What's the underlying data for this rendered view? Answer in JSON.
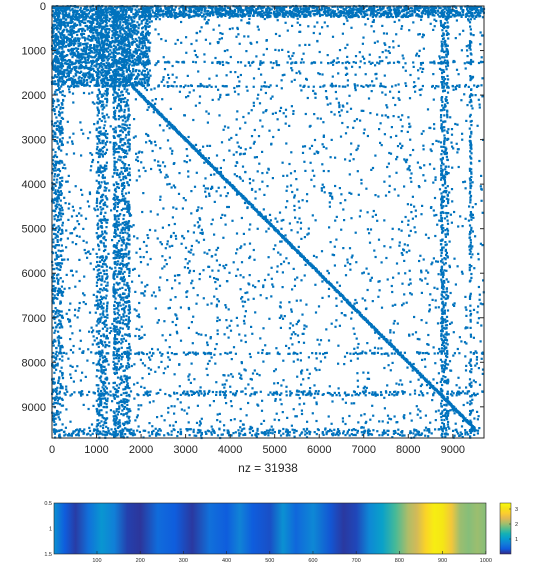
{
  "chart_data": [
    {
      "type": "scatter",
      "subtype": "sparsity-pattern",
      "title": "",
      "xlabel": "nz = 31938",
      "ylabel": "",
      "matrix_size": 9700,
      "nnz": 31938,
      "xlim": [
        0,
        9700
      ],
      "ylim": [
        9700,
        0
      ],
      "x_ticks": [
        0,
        1000,
        2000,
        3000,
        4000,
        5000,
        6000,
        7000,
        8000,
        9000
      ],
      "x_tick_labels": [
        "0",
        "1000",
        "2000",
        "3000",
        "4000",
        "5000",
        "6000",
        "7000",
        "8000",
        "9000"
      ],
      "y_ticks": [
        0,
        1000,
        2000,
        3000,
        4000,
        5000,
        6000,
        7000,
        8000,
        9000
      ],
      "y_tick_labels": [
        "0",
        "1000",
        "2000",
        "3000",
        "4000",
        "5000",
        "6000",
        "7000",
        "8000",
        "9000"
      ],
      "marker_color": "#0072BD",
      "features": {
        "diagonal": {
          "from": 1800,
          "to": 9500
        },
        "dense_columns": [
          [
            0,
            120
          ],
          [
            120,
            250
          ],
          [
            1000,
            1250
          ],
          [
            1400,
            1700
          ],
          [
            8750,
            8900
          ]
        ],
        "dense_rows": [
          [
            0,
            250
          ],
          [
            8650,
            8750
          ],
          [
            9500,
            9650
          ]
        ],
        "dense_blocks": [
          {
            "rows": [
              0,
              1800
            ],
            "cols": [
              0,
              2200
            ]
          },
          {
            "rows": [
              0,
              250
            ],
            "cols": [
              2000,
              9700
            ]
          }
        ],
        "row_bands": [
          1270,
          1800,
          7800
        ],
        "col_bands": [
          1400,
          1730,
          8750,
          9400
        ]
      },
      "grid": false
    },
    {
      "type": "heatmap",
      "title": "",
      "xlabel": "",
      "ylabel": "",
      "x_ticks": [
        100,
        200,
        300,
        400,
        500,
        600,
        700,
        800,
        900,
        1000
      ],
      "x_tick_labels": [
        "100",
        "200",
        "300",
        "400",
        "500",
        "600",
        "700",
        "800",
        "900",
        "1000"
      ],
      "y_ticks": [
        0.5,
        1,
        1.5
      ],
      "y_tick_labels": [
        "0.5",
        "1",
        "1.5"
      ],
      "xlim": [
        0.5,
        1000.5
      ],
      "ylim": [
        0.5,
        1.5
      ],
      "rows": 1,
      "columns": 1000,
      "profile": [
        [
          0,
          0.9
        ],
        [
          25,
          0.35
        ],
        [
          50,
          0.12
        ],
        [
          80,
          0.55
        ],
        [
          110,
          0.95
        ],
        [
          140,
          0.7
        ],
        [
          170,
          0.15
        ],
        [
          200,
          0.08
        ],
        [
          240,
          0.5
        ],
        [
          280,
          0.35
        ],
        [
          320,
          0.1
        ],
        [
          360,
          0.55
        ],
        [
          400,
          0.35
        ],
        [
          430,
          0.75
        ],
        [
          460,
          0.35
        ],
        [
          500,
          0.25
        ],
        [
          530,
          0.9
        ],
        [
          560,
          0.45
        ],
        [
          600,
          0.8
        ],
        [
          640,
          0.3
        ],
        [
          670,
          0.1
        ],
        [
          700,
          0.2
        ],
        [
          730,
          0.8
        ],
        [
          760,
          1.1
        ],
        [
          790,
          1.6
        ],
        [
          820,
          2.1
        ],
        [
          840,
          2.3
        ],
        [
          860,
          2.8
        ],
        [
          880,
          3.2
        ],
        [
          900,
          3.1
        ],
        [
          920,
          2.6
        ],
        [
          940,
          2.0
        ],
        [
          960,
          1.9
        ],
        [
          980,
          2.0
        ],
        [
          1000,
          1.9
        ]
      ],
      "colorbar": {
        "ticks": [
          1,
          2,
          3
        ],
        "tick_labels": [
          "1",
          "2",
          "3"
        ],
        "clim": [
          0,
          3.4
        ],
        "colormap": "parula"
      }
    }
  ]
}
